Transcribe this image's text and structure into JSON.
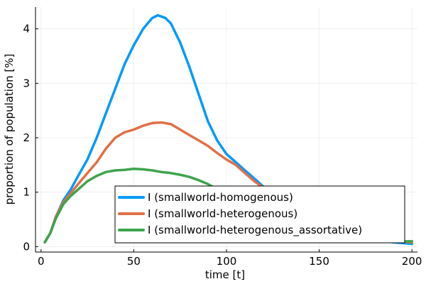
{
  "chart_data": {
    "type": "line",
    "title": "",
    "xlabel": "time [t]",
    "ylabel": "proportion of population [%]",
    "xlim": [
      -3,
      203
    ],
    "ylim": [
      -0.1,
      4.4
    ],
    "xticks": [
      0,
      50,
      100,
      150,
      200
    ],
    "xtick_labels": [
      "0",
      "50",
      "100",
      "150",
      "200"
    ],
    "yticks": [
      0,
      1,
      2,
      3,
      4
    ],
    "ytick_labels": [
      "0",
      "1",
      "2",
      "3",
      "4"
    ],
    "grid": true,
    "legend_position": "bottom-right",
    "series": [
      {
        "name": "I (smallworld-homogenous)",
        "color": "#009AFA",
        "points": [
          [
            2,
            0.08
          ],
          [
            5,
            0.25
          ],
          [
            8,
            0.55
          ],
          [
            12,
            0.85
          ],
          [
            16,
            1.05
          ],
          [
            20,
            1.3
          ],
          [
            25,
            1.6
          ],
          [
            30,
            2.0
          ],
          [
            35,
            2.45
          ],
          [
            40,
            2.9
          ],
          [
            45,
            3.35
          ],
          [
            50,
            3.7
          ],
          [
            55,
            4.0
          ],
          [
            60,
            4.2
          ],
          [
            63,
            4.25
          ],
          [
            67,
            4.2
          ],
          [
            70,
            4.1
          ],
          [
            75,
            3.75
          ],
          [
            80,
            3.3
          ],
          [
            85,
            2.8
          ],
          [
            90,
            2.3
          ],
          [
            95,
            1.95
          ],
          [
            100,
            1.7
          ],
          [
            105,
            1.55
          ],
          [
            110,
            1.4
          ],
          [
            115,
            1.25
          ],
          [
            120,
            1.1
          ],
          [
            123,
            1.0
          ],
          [
            130,
            0.75
          ],
          [
            140,
            0.5
          ],
          [
            150,
            0.35
          ],
          [
            160,
            0.25
          ],
          [
            170,
            0.18
          ],
          [
            180,
            0.12
          ],
          [
            190,
            0.08
          ],
          [
            200,
            0.05
          ]
        ]
      },
      {
        "name": "I (smallworld-heterogenous)",
        "color": "#E26F46",
        "points": [
          [
            2,
            0.08
          ],
          [
            5,
            0.25
          ],
          [
            8,
            0.55
          ],
          [
            12,
            0.82
          ],
          [
            16,
            0.98
          ],
          [
            20,
            1.15
          ],
          [
            25,
            1.35
          ],
          [
            30,
            1.55
          ],
          [
            35,
            1.8
          ],
          [
            40,
            2.0
          ],
          [
            45,
            2.1
          ],
          [
            50,
            2.15
          ],
          [
            55,
            2.22
          ],
          [
            60,
            2.27
          ],
          [
            65,
            2.28
          ],
          [
            70,
            2.25
          ],
          [
            75,
            2.15
          ],
          [
            80,
            2.05
          ],
          [
            85,
            1.95
          ],
          [
            90,
            1.85
          ],
          [
            95,
            1.72
          ],
          [
            100,
            1.6
          ],
          [
            105,
            1.5
          ],
          [
            110,
            1.35
          ],
          [
            115,
            1.2
          ],
          [
            120,
            1.08
          ],
          [
            125,
            0.95
          ],
          [
            130,
            0.8
          ],
          [
            140,
            0.6
          ],
          [
            150,
            0.45
          ],
          [
            160,
            0.32
          ],
          [
            170,
            0.22
          ],
          [
            180,
            0.15
          ],
          [
            190,
            0.1
          ],
          [
            200,
            0.08
          ]
        ]
      },
      {
        "name": "I (smallworld-heterogenous_assortative)",
        "color": "#3DA44D",
        "points": [
          [
            2,
            0.08
          ],
          [
            5,
            0.25
          ],
          [
            8,
            0.52
          ],
          [
            12,
            0.78
          ],
          [
            16,
            0.93
          ],
          [
            20,
            1.05
          ],
          [
            25,
            1.2
          ],
          [
            30,
            1.3
          ],
          [
            35,
            1.37
          ],
          [
            40,
            1.4
          ],
          [
            45,
            1.41
          ],
          [
            50,
            1.43
          ],
          [
            55,
            1.42
          ],
          [
            60,
            1.4
          ],
          [
            65,
            1.37
          ],
          [
            70,
            1.35
          ],
          [
            75,
            1.32
          ],
          [
            80,
            1.28
          ],
          [
            85,
            1.22
          ],
          [
            90,
            1.15
          ],
          [
            95,
            1.05
          ],
          [
            100,
            0.95
          ],
          [
            105,
            0.85
          ],
          [
            110,
            0.75
          ],
          [
            115,
            0.66
          ],
          [
            120,
            0.58
          ],
          [
            130,
            0.45
          ],
          [
            140,
            0.35
          ],
          [
            150,
            0.27
          ],
          [
            160,
            0.2
          ],
          [
            170,
            0.15
          ],
          [
            180,
            0.11
          ],
          [
            190,
            0.09
          ],
          [
            200,
            0.1
          ]
        ]
      }
    ]
  }
}
